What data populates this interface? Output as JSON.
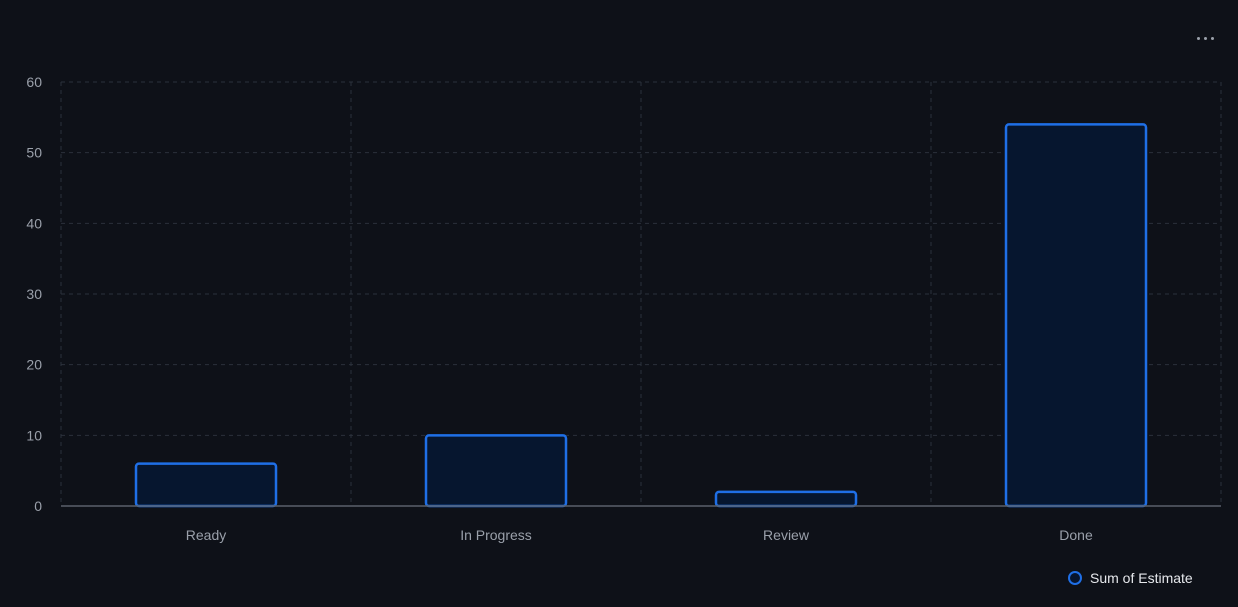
{
  "menu": {
    "more_icon": "more-horizontal-icon"
  },
  "colors": {
    "background": "#0e1118",
    "bar_fill": "#06162f",
    "bar_stroke": "#1f6fe6",
    "grid": "#2b313b",
    "axis_text": "#9aa0aa",
    "legend_text": "#e6e8ec"
  },
  "chart_data": {
    "type": "bar",
    "title": "",
    "xlabel": "",
    "ylabel": "",
    "categories": [
      "Ready",
      "In Progress",
      "Review",
      "Done"
    ],
    "series": [
      {
        "name": "Sum of Estimate",
        "values": [
          6,
          10,
          2,
          54
        ]
      }
    ],
    "ylim": [
      0,
      60
    ],
    "yticks": [
      "0",
      "10",
      "20",
      "30",
      "40",
      "50",
      "60"
    ],
    "grid": true,
    "legend": {
      "position": "bottom-right",
      "label": "Sum of Estimate"
    }
  }
}
